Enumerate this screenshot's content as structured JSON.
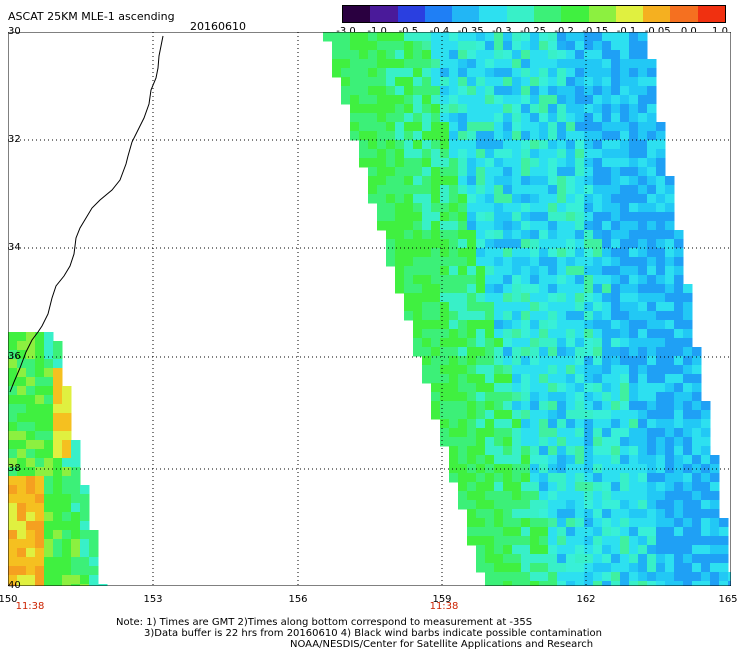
{
  "header": {
    "title": "ASCAT 25KM MLE-1 ascending",
    "date": "20160610"
  },
  "colorbar": {
    "colors": [
      "#2a0040",
      "#4a1a9a",
      "#2a3fe0",
      "#1f7ff5",
      "#22b6f5",
      "#2de0f0",
      "#38f0c8",
      "#3cf078",
      "#40f040",
      "#8cf040",
      "#e0f040",
      "#f5b020",
      "#f57020",
      "#f03010"
    ],
    "labels": [
      "-3.0",
      "-1.0",
      "-0.5",
      "-0.4",
      "-0.35",
      "-0.3",
      "-0.25",
      "-0.2",
      "-0.15",
      "-0.1",
      "-0.05",
      "0.0",
      "1.0"
    ]
  },
  "map": {
    "lon_range": [
      150,
      165
    ],
    "lat_range": [
      -30,
      -40
    ],
    "lat_labels": [
      "30",
      "32",
      "34",
      "36",
      "38",
      "40"
    ],
    "lon_labels": [
      "150",
      "153",
      "156",
      "159",
      "162",
      "165"
    ],
    "times": [
      "11:38",
      "11:38"
    ]
  },
  "footer": {
    "note1": "Note: 1) Times are GMT 2)Times along bottom correspond to measurement at -35S",
    "note2": "3)Data buffer is 22 hrs from 20160610 4) Black wind barbs indicate possible contamination",
    "note3": "NOAA/NESDIS/Center for Satellite Applications and Research"
  }
}
